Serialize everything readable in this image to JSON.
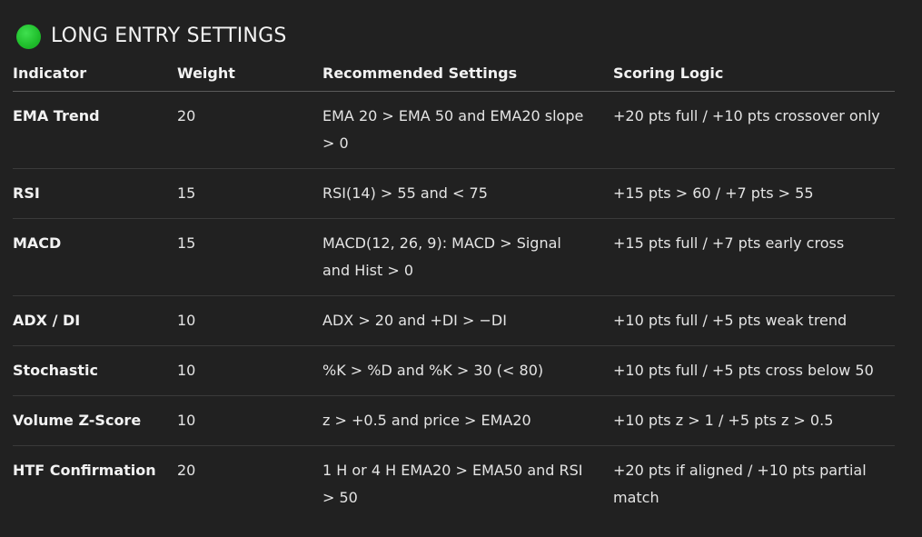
{
  "heading": {
    "title": "LONG ENTRY SETTINGS",
    "status_color": "#27c93f"
  },
  "table": {
    "headers": {
      "indicator": "Indicator",
      "weight": "Weight",
      "settings": "Recommended Settings",
      "logic": "Scoring Logic"
    },
    "rows": [
      {
        "indicator": "EMA Trend",
        "weight": "20",
        "settings": "EMA 20 > EMA 50 and EMA20 slope > 0",
        "logic": "+20 pts full / +10 pts crossover only"
      },
      {
        "indicator": "RSI",
        "weight": "15",
        "settings": "RSI(14) > 55 and < 75",
        "logic": "+15 pts > 60 / +7 pts > 55"
      },
      {
        "indicator": "MACD",
        "weight": "15",
        "settings": "MACD(12, 26, 9): MACD > Signal and Hist > 0",
        "logic": "+15 pts full / +7 pts early cross"
      },
      {
        "indicator": "ADX / DI",
        "weight": "10",
        "settings": "ADX > 20 and +DI > −DI",
        "logic": "+10 pts full / +5 pts weak trend"
      },
      {
        "indicator": "Stochastic",
        "weight": "10",
        "settings": "%K > %D and %K > 30 (< 80)",
        "logic": "+10 pts full / +5 pts cross below 50"
      },
      {
        "indicator": "Volume Z-Score",
        "weight": "10",
        "settings": "z > +0.5 and price > EMA20",
        "logic": "+10 pts z > 1 / +5 pts z > 0.5"
      },
      {
        "indicator": "HTF Confirmation",
        "weight": "20",
        "settings": "1 H or 4 H EMA20 > EMA50 and RSI > 50",
        "logic": "+20 pts if aligned / +10 pts partial match"
      }
    ]
  }
}
